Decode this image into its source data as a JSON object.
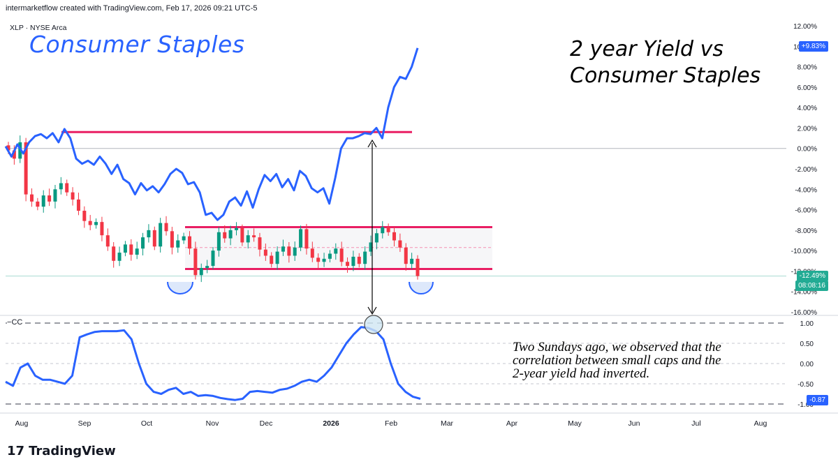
{
  "header": {
    "credit": "intermarketflow created with TradingView.com, Feb 17, 2026 09:21 UTC-5",
    "symbol": "XLP · NYSE Arca"
  },
  "annotations": {
    "left_title": "Consumer Staples",
    "right_title_line1": "2 year Yield vs",
    "right_title_line2": "Consumer Staples",
    "note_line1": "Two Sundays ago, we observed that the",
    "note_line2": "correlation between small caps and the",
    "note_line3": "2-year yield had inverted."
  },
  "tags": {
    "yield_last": "+9.83%",
    "xlp_last": "-12.49%",
    "countdown": "08:08:16",
    "cc_last": "-0.87",
    "cc_label": "CC"
  },
  "logo": {
    "mark": "17",
    "text": "TradingView"
  },
  "colors": {
    "blue": "#2962ff",
    "red": "#e91e63",
    "up": "#089981",
    "down": "#f23645",
    "grid": "#e0e3eb",
    "text": "#131722",
    "tag_blue": "#2962ff",
    "tag_green": "#22ab94"
  },
  "chart_data": [
    {
      "type": "line",
      "title": "2 year Yield vs Consumer Staples",
      "x_ticks": [
        "Aug",
        "Sep",
        "Oct",
        "Nov",
        "Dec",
        "2026",
        "Feb",
        "Mar",
        "Apr",
        "May",
        "Jun",
        "Jul",
        "Aug"
      ],
      "y_ticks": [
        "12.00%",
        "10.00%",
        "8.00%",
        "6.00%",
        "4.00%",
        "2.00%",
        "0.00%",
        "-2.00%",
        "-4.00%",
        "-6.00%",
        "-8.00%",
        "-10.00%",
        "-12.00%",
        "-14.00%",
        "-16.00%"
      ],
      "ylim": [
        -16,
        12
      ],
      "grid": "horizontal",
      "series": [
        {
          "name": "2 year Yield",
          "style": "line",
          "values": [
            0.2,
            -0.8,
            0.4,
            -0.5,
            0.6,
            1.2,
            1.4,
            1.0,
            1.5,
            0.6,
            1.9,
            1.0,
            -1.0,
            -1.5,
            -1.2,
            -1.6,
            -0.8,
            -1.5,
            -2.5,
            -1.6,
            -3.0,
            -3.4,
            -4.5,
            -3.4,
            -4.1,
            -3.7,
            -4.3,
            -3.5,
            -2.5,
            -2.0,
            -2.4,
            -3.5,
            -3.3,
            -4.3,
            -6.5,
            -6.3,
            -7.0,
            -6.5,
            -5.2,
            -4.8,
            -5.6,
            -4.2,
            -5.8,
            -4.0,
            -2.6,
            -3.2,
            -2.5,
            -3.8,
            -3.0,
            -4.1,
            -2.2,
            -2.7,
            -3.9,
            -4.3,
            -3.9,
            -5.4,
            -2.9,
            0.0,
            1.0,
            1.0,
            1.2,
            1.5,
            1.4,
            2.0,
            1.0,
            4.0,
            6.0,
            7.0,
            6.8,
            8.0,
            9.83
          ]
        },
        {
          "name": "XLP",
          "style": "candlestick",
          "values": [
            -0.2,
            -1.0,
            0.6,
            -4.5,
            -5.2,
            -5.7,
            -4.6,
            -5.2,
            -4.0,
            -3.4,
            -4.3,
            -5.0,
            -6.1,
            -7.1,
            -7.5,
            -7.2,
            -8.5,
            -9.6,
            -11.0,
            -10.2,
            -9.4,
            -10.4,
            -9.8,
            -8.7,
            -8.0,
            -9.6,
            -7.3,
            -8.1,
            -9.7,
            -9.0,
            -8.6,
            -9.8,
            -12.4,
            -11.7,
            -11.5,
            -10.0,
            -8.2,
            -8.8,
            -8.0,
            -7.8,
            -9.2,
            -8.5,
            -8.7,
            -9.9,
            -10.5,
            -11.3,
            -10.1,
            -9.6,
            -10.5,
            -9.7,
            -7.9,
            -9.8,
            -10.7,
            -11.1,
            -10.8,
            -10.3,
            -9.8,
            -11.1,
            -11.5,
            -10.6,
            -11.3,
            -10.1,
            -9.2,
            -8.3,
            -7.7,
            -8.2,
            -9.0,
            -9.7,
            -11.3,
            -10.8,
            -12.49
          ]
        }
      ],
      "levels": {
        "yield_resistance": 1.6,
        "xlp_range_top": -7.7,
        "xlp_range_mid": -9.7,
        "xlp_range_bottom": -11.8
      }
    },
    {
      "type": "line",
      "title": "CC",
      "ylim": [
        -1,
        1
      ],
      "y_ticks": [
        "1.00",
        "0.50",
        "0.00",
        "-0.50",
        "-1.00"
      ],
      "series": [
        {
          "name": "CC",
          "values": [
            -0.45,
            -0.55,
            -0.1,
            0.0,
            -0.3,
            -0.4,
            -0.4,
            -0.45,
            -0.5,
            -0.3,
            0.65,
            0.72,
            0.78,
            0.8,
            0.8,
            0.8,
            0.82,
            0.6,
            0.0,
            -0.5,
            -0.7,
            -0.75,
            -0.65,
            -0.6,
            -0.75,
            -0.7,
            -0.8,
            -0.78,
            -0.8,
            -0.85,
            -0.88,
            -0.9,
            -0.87,
            -0.7,
            -0.68,
            -0.7,
            -0.72,
            -0.65,
            -0.62,
            -0.55,
            -0.45,
            -0.4,
            -0.45,
            -0.3,
            -0.1,
            0.2,
            0.5,
            0.72,
            0.9,
            0.88,
            0.8,
            0.6,
            0.0,
            -0.5,
            -0.7,
            -0.82,
            -0.87
          ]
        }
      ]
    }
  ]
}
